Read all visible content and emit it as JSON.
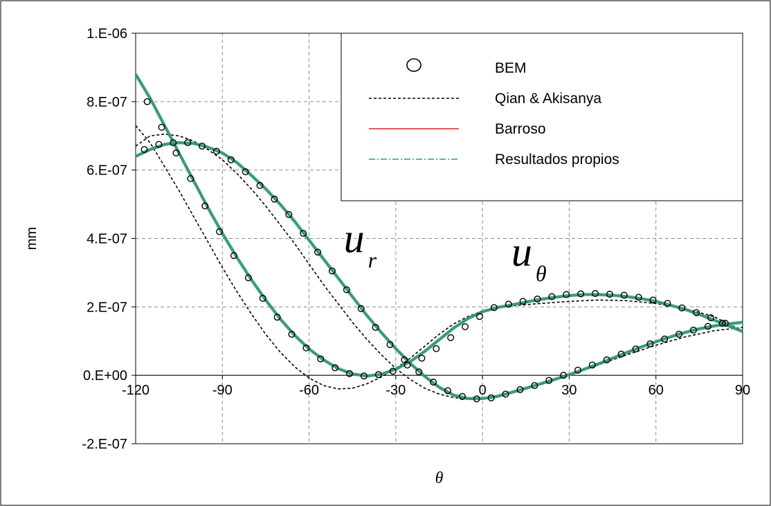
{
  "chart_data": {
    "type": "line",
    "xlabel": "θ",
    "ylabel": "mm",
    "xlim": [
      -120,
      90
    ],
    "ylim": [
      -2e-07,
      1e-06
    ],
    "x_ticks": [
      -120,
      -90,
      -60,
      -30,
      0,
      30,
      60,
      90
    ],
    "x_tick_labels": [
      "-120",
      "-90",
      "-60",
      "-30",
      "0",
      "30",
      "60",
      "90"
    ],
    "y_ticks": [
      -2e-07,
      0,
      2e-07,
      4e-07,
      6e-07,
      8e-07,
      1e-06
    ],
    "y_tick_labels": [
      "-2.E-07",
      "0.E+00",
      "2.E-07",
      "4.E-07",
      "6.E-07",
      "8.E-07",
      "1.E-06"
    ],
    "grid": true,
    "legend_position": "top-right",
    "annotations": [
      {
        "text": "u",
        "subscript": "r",
        "x": -48,
        "y": 3.6e-07
      },
      {
        "text": "u",
        "subscript": "θ",
        "x": 10,
        "y": 3.2e-07
      }
    ],
    "series": [
      {
        "name": "BEM",
        "style": "markers",
        "color": "#000000",
        "curve": "ur",
        "x": [
          -117,
          -112,
          -107,
          -102,
          -97,
          -92,
          -87,
          -82,
          -77,
          -72,
          -67,
          -62,
          -57,
          -52,
          -47,
          -42,
          -37,
          -32,
          -27,
          -22,
          -17,
          -12,
          -7,
          -2,
          3,
          8,
          13,
          18,
          23,
          28,
          33,
          38,
          43,
          48,
          53,
          58,
          63,
          68,
          73,
          78,
          83
        ],
        "y": [
          6.6e-07,
          6.75e-07,
          6.8e-07,
          6.8e-07,
          6.7e-07,
          6.55e-07,
          6.3e-07,
          5.95e-07,
          5.55e-07,
          5.15e-07,
          4.7e-07,
          4.15e-07,
          3.6e-07,
          3.05e-07,
          2.5e-07,
          1.95e-07,
          1.4e-07,
          9e-08,
          4.5e-08,
          1e-08,
          -2e-08,
          -4.5e-08,
          -6.2e-08,
          -6.9e-08,
          -6.6e-08,
          -5.5e-08,
          -4.2e-08,
          -3e-08,
          -1.5e-08,
          0,
          1.5e-08,
          3e-08,
          4.5e-08,
          6.2e-08,
          7.7e-08,
          9.2e-08,
          1.06e-07,
          1.2e-07,
          1.32e-07,
          1.43e-07,
          1.52e-07
        ]
      },
      {
        "name": "BEM",
        "style": "markers",
        "color": "#000000",
        "curve": "utheta",
        "x": [
          -116,
          -111,
          -106,
          -101,
          -96,
          -91,
          -86,
          -81,
          -76,
          -71,
          -66,
          -61,
          -56,
          -51,
          -46,
          -41,
          -36,
          -31,
          -26,
          -21,
          -16,
          -11,
          -6,
          -1,
          4,
          9,
          14,
          19,
          24,
          29,
          34,
          39,
          44,
          49,
          54,
          59,
          64,
          69,
          74,
          79,
          84
        ],
        "y": [
          8e-07,
          7.25e-07,
          6.5e-07,
          5.75e-07,
          4.95e-07,
          4.2e-07,
          3.5e-07,
          2.85e-07,
          2.25e-07,
          1.7e-07,
          1.2e-07,
          8e-08,
          4.8e-08,
          2.2e-08,
          5e-09,
          -2e-09,
          2e-09,
          1.2e-08,
          3e-08,
          5e-08,
          7.8e-08,
          1.1e-07,
          1.42e-07,
          1.72e-07,
          1.98e-07,
          2.08e-07,
          2.16e-07,
          2.23e-07,
          2.3e-07,
          2.36e-07,
          2.38e-07,
          2.39e-07,
          2.37e-07,
          2.34e-07,
          2.28e-07,
          2.2e-07,
          2.1e-07,
          1.97e-07,
          1.83e-07,
          1.68e-07,
          1.52e-07
        ]
      },
      {
        "name": "Qian & Akisanya",
        "style": "dashed",
        "color": "#000000",
        "curve": "ur",
        "x": [
          -120,
          -115,
          -110,
          -105,
          -100,
          -95,
          -90,
          -85,
          -80,
          -75,
          -70,
          -65,
          -60,
          -55,
          -50,
          -45,
          -40,
          -35,
          -30,
          -25,
          -20,
          -15,
          -10,
          -5,
          0,
          10,
          20,
          30,
          40,
          50,
          60,
          70,
          80,
          90
        ],
        "y": [
          6.7e-07,
          7e-07,
          7.05e-07,
          7e-07,
          6.85e-07,
          6.6e-07,
          6.3e-07,
          5.9e-07,
          5.45e-07,
          4.95e-07,
          4.4e-07,
          3.85e-07,
          3.25e-07,
          2.65e-07,
          2.1e-07,
          1.55e-07,
          1.05e-07,
          6e-08,
          2e-08,
          -1.2e-08,
          -3.8e-08,
          -5.5e-08,
          -6.5e-08,
          -7e-08,
          -6.8e-08,
          -5e-08,
          -2.8e-08,
          0,
          3e-08,
          6e-08,
          8.8e-08,
          1.12e-07,
          1.3e-07,
          1.4e-07
        ]
      },
      {
        "name": "Qian & Akisanya",
        "style": "dashed",
        "color": "#000000",
        "curve": "utheta",
        "x": [
          -120,
          -115,
          -110,
          -105,
          -100,
          -95,
          -90,
          -85,
          -80,
          -75,
          -70,
          -65,
          -60,
          -55,
          -50,
          -45,
          -40,
          -35,
          -30,
          -25,
          -20,
          -15,
          -10,
          -5,
          0,
          5,
          10,
          20,
          30,
          40,
          50,
          60,
          70,
          80,
          90
        ],
        "y": [
          7.3e-07,
          6.8e-07,
          6.1e-07,
          5.4e-07,
          4.65e-07,
          3.9e-07,
          3.15e-07,
          2.45e-07,
          1.8e-07,
          1.2e-07,
          6.8e-08,
          2.5e-08,
          -8e-09,
          -3e-08,
          -4e-08,
          -3.8e-08,
          -2.5e-08,
          -5e-09,
          2e-08,
          5e-08,
          8.5e-08,
          1.2e-07,
          1.5e-07,
          1.72e-07,
          1.88e-07,
          1.97e-07,
          2.03e-07,
          2.1e-07,
          2.16e-07,
          2.2e-07,
          2.18e-07,
          2.1e-07,
          1.95e-07,
          1.72e-07,
          1.3e-07
        ]
      },
      {
        "name": "Barroso",
        "style": "solid",
        "color": "#e02020",
        "curve": "ur",
        "x": [
          -120,
          -115,
          -110,
          -105,
          -100,
          -95,
          -90,
          -85,
          -80,
          -75,
          -70,
          -65,
          -60,
          -55,
          -50,
          -45,
          -40,
          -35,
          -30,
          -25,
          -20,
          -15,
          -10,
          -5,
          0,
          5,
          10,
          15,
          20,
          25,
          30,
          35,
          40,
          45,
          50,
          55,
          60,
          65,
          70,
          75,
          80,
          85,
          90
        ],
        "y": [
          6.4e-07,
          6.6e-07,
          6.75e-07,
          6.8e-07,
          6.78e-07,
          6.67e-07,
          6.5e-07,
          6.22e-07,
          5.85e-07,
          5.45e-07,
          5e-07,
          4.5e-07,
          3.95e-07,
          3.4e-07,
          2.85e-07,
          2.3e-07,
          1.75e-07,
          1.25e-07,
          7.8e-08,
          3.5e-08,
          -3e-09,
          -3.5e-08,
          -5.8e-08,
          -6.8e-08,
          -6.8e-08,
          -6.2e-08,
          -5e-08,
          -3.8e-08,
          -2.5e-08,
          -1.2e-08,
          2e-09,
          1.7e-08,
          3.3e-08,
          5e-08,
          6.7e-08,
          8.3e-08,
          9.8e-08,
          1.12e-07,
          1.25e-07,
          1.36e-07,
          1.44e-07,
          1.5e-07,
          1.55e-07
        ]
      },
      {
        "name": "Barroso",
        "style": "solid",
        "color": "#e02020",
        "curve": "utheta",
        "x": [
          -120,
          -115,
          -110,
          -105,
          -100,
          -95,
          -90,
          -85,
          -80,
          -75,
          -70,
          -65,
          -60,
          -55,
          -50,
          -45,
          -40,
          -35,
          -30,
          -25,
          -20,
          -15,
          -10,
          -5,
          0,
          5,
          10,
          15,
          20,
          25,
          30,
          35,
          40,
          45,
          50,
          55,
          60,
          65,
          70,
          75,
          80,
          85,
          90
        ],
        "y": [
          8.8e-07,
          8.1e-07,
          7.3e-07,
          6.5e-07,
          5.7e-07,
          4.9e-07,
          4.15e-07,
          3.45e-07,
          2.8e-07,
          2.2e-07,
          1.65e-07,
          1.17e-07,
          7.7e-08,
          4.5e-08,
          2e-08,
          4e-09,
          -2e-09,
          3e-09,
          1.8e-08,
          4e-08,
          7e-08,
          1.04e-07,
          1.38e-07,
          1.66e-07,
          1.86e-07,
          1.98e-07,
          2.06e-07,
          2.14e-07,
          2.22e-07,
          2.28e-07,
          2.33e-07,
          2.36e-07,
          2.36e-07,
          2.34e-07,
          2.3e-07,
          2.24e-07,
          2.16e-07,
          2.05e-07,
          1.93e-07,
          1.78e-07,
          1.62e-07,
          1.45e-07,
          1.28e-07
        ]
      },
      {
        "name": "Resultados propios",
        "style": "dash-dot",
        "color": "#2e9e77",
        "curve": "ur",
        "x": [
          -120,
          -115,
          -110,
          -105,
          -100,
          -95,
          -90,
          -85,
          -80,
          -75,
          -70,
          -65,
          -60,
          -55,
          -50,
          -45,
          -40,
          -35,
          -30,
          -25,
          -20,
          -15,
          -10,
          -5,
          0,
          5,
          10,
          15,
          20,
          25,
          30,
          35,
          40,
          45,
          50,
          55,
          60,
          65,
          70,
          75,
          80,
          85,
          90
        ],
        "y": [
          6.4e-07,
          6.6e-07,
          6.75e-07,
          6.8e-07,
          6.78e-07,
          6.67e-07,
          6.5e-07,
          6.22e-07,
          5.85e-07,
          5.45e-07,
          5e-07,
          4.5e-07,
          3.95e-07,
          3.4e-07,
          2.85e-07,
          2.3e-07,
          1.75e-07,
          1.25e-07,
          7.8e-08,
          3.5e-08,
          -3e-09,
          -3.5e-08,
          -5.8e-08,
          -6.8e-08,
          -6.8e-08,
          -6.2e-08,
          -5e-08,
          -3.8e-08,
          -2.5e-08,
          -1.2e-08,
          2e-09,
          1.7e-08,
          3.3e-08,
          5e-08,
          6.7e-08,
          8.3e-08,
          9.8e-08,
          1.12e-07,
          1.25e-07,
          1.36e-07,
          1.44e-07,
          1.5e-07,
          1.55e-07
        ]
      },
      {
        "name": "Resultados propios",
        "style": "dash-dot",
        "color": "#2e9e77",
        "curve": "utheta",
        "x": [
          -120,
          -115,
          -110,
          -105,
          -100,
          -95,
          -90,
          -85,
          -80,
          -75,
          -70,
          -65,
          -60,
          -55,
          -50,
          -45,
          -40,
          -35,
          -30,
          -25,
          -20,
          -15,
          -10,
          -5,
          0,
          5,
          10,
          15,
          20,
          25,
          30,
          35,
          40,
          45,
          50,
          55,
          60,
          65,
          70,
          75,
          80,
          85,
          90
        ],
        "y": [
          8.8e-07,
          8.1e-07,
          7.3e-07,
          6.5e-07,
          5.7e-07,
          4.9e-07,
          4.15e-07,
          3.45e-07,
          2.8e-07,
          2.2e-07,
          1.65e-07,
          1.17e-07,
          7.7e-08,
          4.5e-08,
          2e-08,
          4e-09,
          -2e-09,
          3e-09,
          1.8e-08,
          4e-08,
          7e-08,
          1.04e-07,
          1.38e-07,
          1.66e-07,
          1.86e-07,
          1.98e-07,
          2.06e-07,
          2.14e-07,
          2.22e-07,
          2.28e-07,
          2.33e-07,
          2.36e-07,
          2.36e-07,
          2.34e-07,
          2.3e-07,
          2.24e-07,
          2.16e-07,
          2.05e-07,
          1.93e-07,
          1.78e-07,
          1.62e-07,
          1.45e-07,
          1.28e-07
        ]
      }
    ],
    "legend": [
      {
        "label": "BEM",
        "style": "markers",
        "color": "#000000"
      },
      {
        "label": "Qian & Akisanya",
        "style": "dashed",
        "color": "#000000"
      },
      {
        "label": "Barroso",
        "style": "solid",
        "color": "#e02020"
      },
      {
        "label": "Resultados propios",
        "style": "dash-dot",
        "color": "#2e9e77"
      }
    ]
  }
}
